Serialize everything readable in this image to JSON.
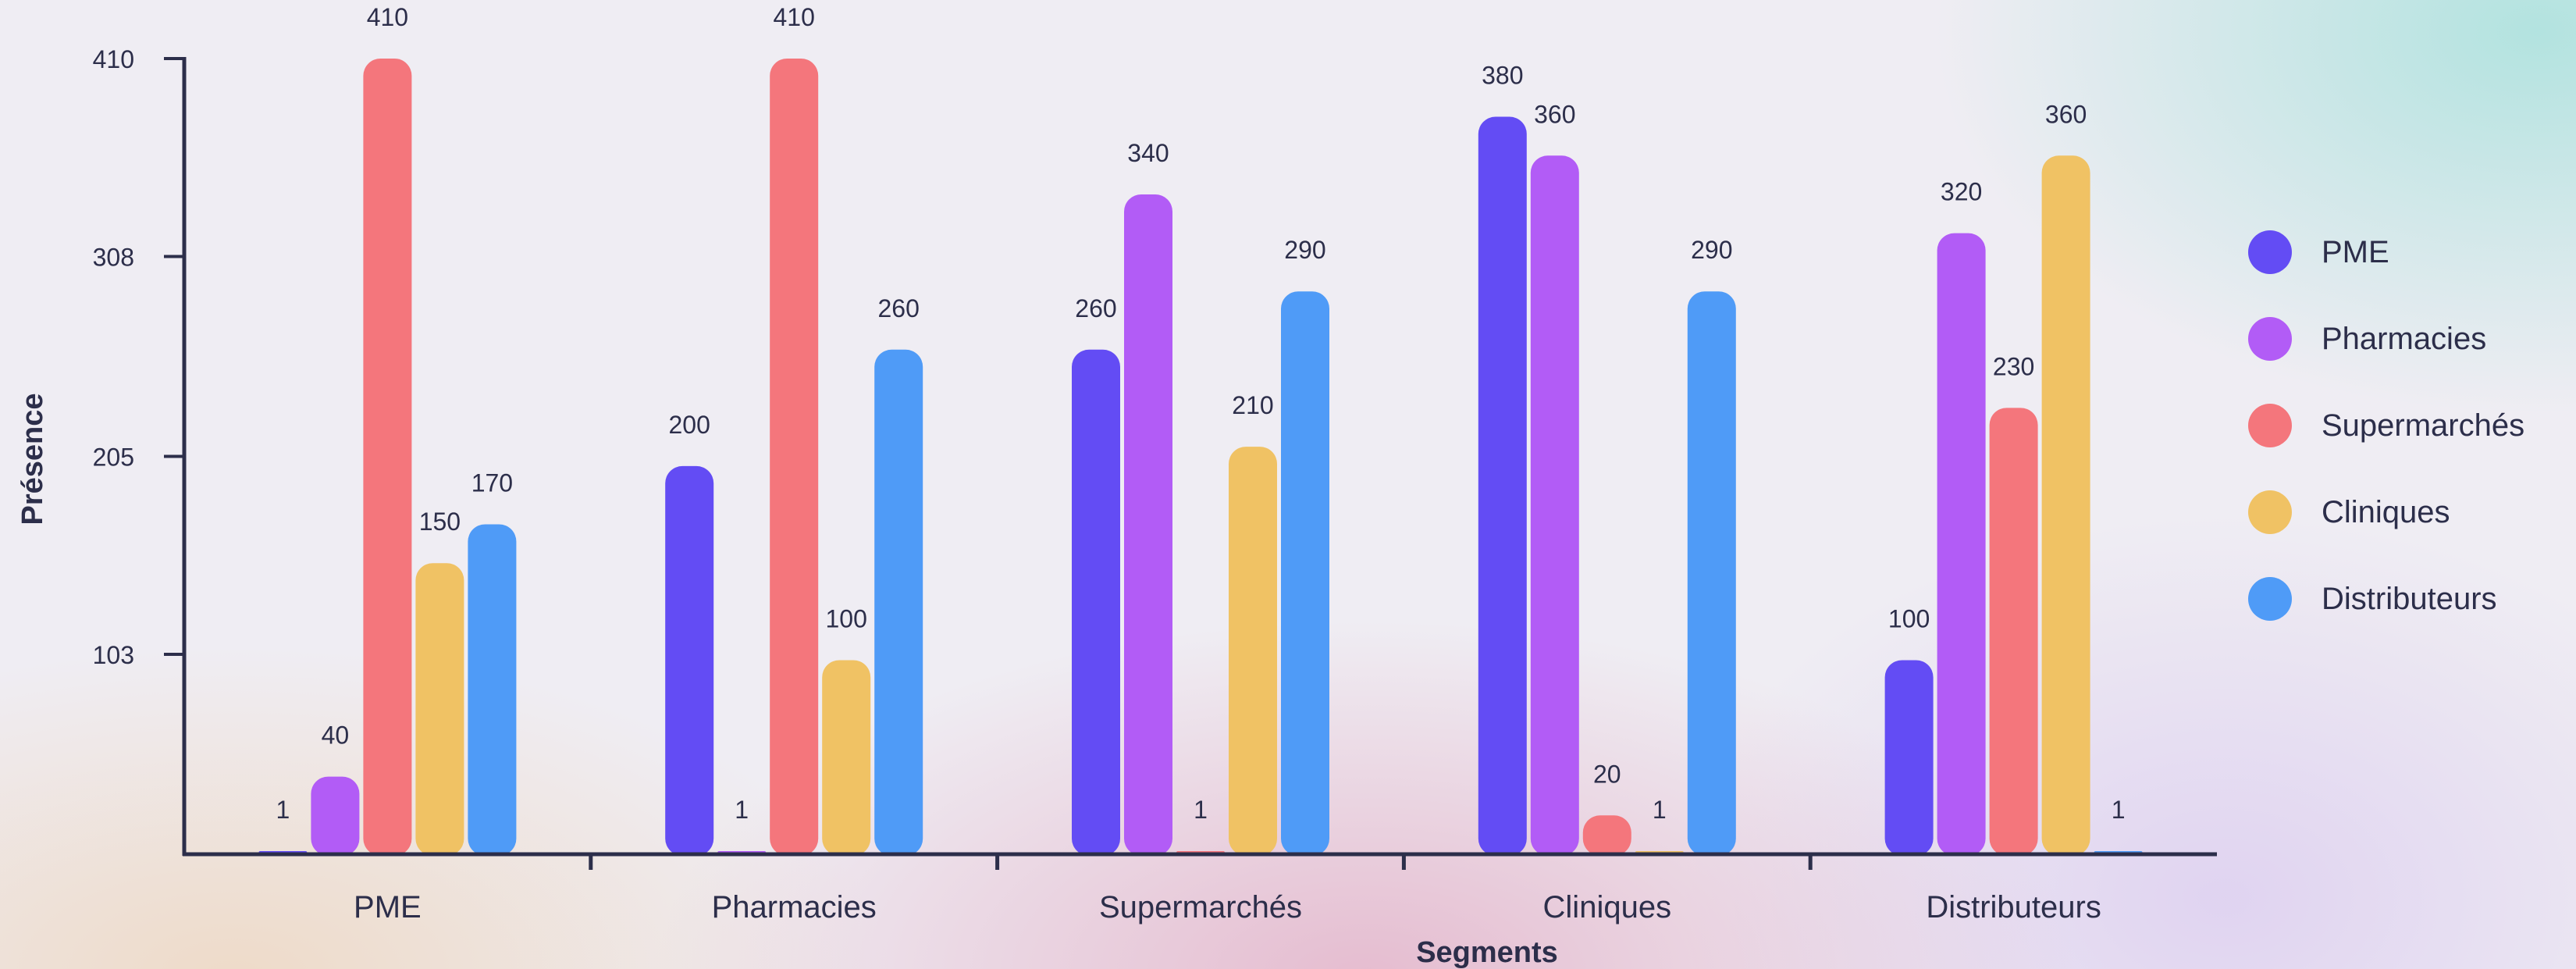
{
  "chart_data": {
    "type": "bar",
    "title": "",
    "xlabel": "Segments",
    "ylabel": "Présence",
    "categories": [
      "PME",
      "Pharmacies",
      "Supermarchés",
      "Cliniques",
      "Distributeurs"
    ],
    "y_ticks": [
      "410",
      "308",
      "205",
      "103"
    ],
    "ylim": [
      0,
      410
    ],
    "grid": false,
    "legend_position": "right",
    "series": [
      {
        "name": "PME",
        "color": "#634cf4",
        "values": [
          1,
          200,
          260,
          380,
          100
        ],
        "labels": [
          "1",
          "200",
          "260",
          "380",
          "100"
        ]
      },
      {
        "name": "Pharmacies",
        "color": "#b25cf6",
        "values": [
          40,
          1,
          340,
          360,
          320
        ],
        "labels": [
          "40",
          "1",
          "340",
          "360",
          "320"
        ]
      },
      {
        "name": "Supermarchés",
        "color": "#f4767c",
        "values": [
          410,
          410,
          1,
          20,
          230
        ],
        "labels": [
          "410",
          "410",
          "1",
          "20",
          "230"
        ]
      },
      {
        "name": "Cliniques",
        "color": "#f0c264",
        "values": [
          150,
          100,
          210,
          1,
          360
        ],
        "labels": [
          "150",
          "100",
          "210",
          "1",
          "360"
        ]
      },
      {
        "name": "Distributeurs",
        "color": "#4f9bf7",
        "values": [
          170,
          260,
          290,
          290,
          1
        ],
        "labels": [
          "170",
          "260",
          "290",
          "290",
          "1"
        ]
      }
    ]
  }
}
